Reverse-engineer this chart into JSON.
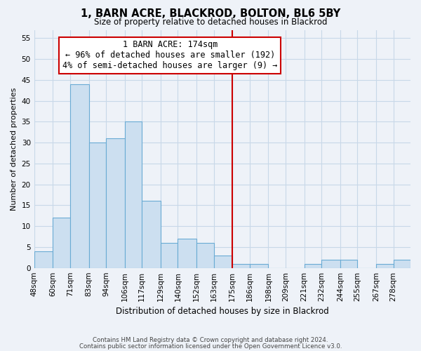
{
  "title": "1, BARN ACRE, BLACKROD, BOLTON, BL6 5BY",
  "subtitle": "Size of property relative to detached houses in Blackrod",
  "xlabel": "Distribution of detached houses by size in Blackrod",
  "ylabel": "Number of detached properties",
  "bin_labels": [
    "48sqm",
    "60sqm",
    "71sqm",
    "83sqm",
    "94sqm",
    "106sqm",
    "117sqm",
    "129sqm",
    "140sqm",
    "152sqm",
    "163sqm",
    "175sqm",
    "186sqm",
    "198sqm",
    "209sqm",
    "221sqm",
    "232sqm",
    "244sqm",
    "255sqm",
    "267sqm",
    "278sqm"
  ],
  "bin_edges": [
    48,
    60,
    71,
    83,
    94,
    106,
    117,
    129,
    140,
    152,
    163,
    175,
    186,
    198,
    209,
    221,
    232,
    244,
    255,
    267,
    278,
    289
  ],
  "bar_heights": [
    4,
    12,
    44,
    30,
    31,
    35,
    16,
    6,
    7,
    6,
    3,
    1,
    1,
    0,
    0,
    1,
    2,
    2,
    0,
    1,
    2
  ],
  "bar_color": "#ccdff0",
  "bar_edge_color": "#6aabd4",
  "grid_color": "#c8d8e8",
  "reference_line_x": 175,
  "reference_line_color": "#cc0000",
  "annotation_title": "1 BARN ACRE: 174sqm",
  "annotation_line1": "← 96% of detached houses are smaller (192)",
  "annotation_line2": "4% of semi-detached houses are larger (9) →",
  "annotation_box_color": "#ffffff",
  "annotation_box_edge_color": "#cc0000",
  "ylim": [
    0,
    57
  ],
  "yticks": [
    0,
    5,
    10,
    15,
    20,
    25,
    30,
    35,
    40,
    45,
    50,
    55
  ],
  "footer_line1": "Contains HM Land Registry data © Crown copyright and database right 2024.",
  "footer_line2": "Contains public sector information licensed under the Open Government Licence v3.0.",
  "background_color": "#eef2f8",
  "title_fontsize": 10.5,
  "subtitle_fontsize": 8.5,
  "ylabel_fontsize": 8,
  "xlabel_fontsize": 8.5,
  "tick_fontsize": 7.5,
  "footer_fontsize": 6.2,
  "annotation_fontsize": 8.5
}
